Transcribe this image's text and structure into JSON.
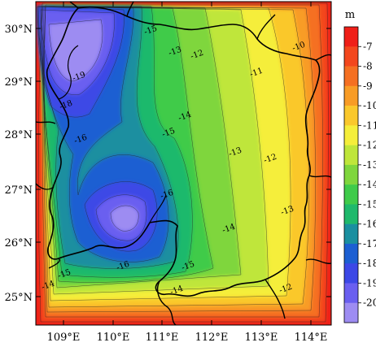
{
  "figure": {
    "type": "contour-map",
    "latitude_labels": [
      "30°N",
      "29°N",
      "28°N",
      "27°N",
      "26°N",
      "25°N"
    ],
    "longitude_labels": [
      "109°E",
      "110°E",
      "111°E",
      "112°E",
      "113°E",
      "114°E"
    ],
    "colorbar": {
      "unit": "m",
      "ticks": [
        "-7",
        "-8",
        "-9",
        "-10",
        "-11",
        "-12",
        "-13",
        "-14",
        "-15",
        "-16",
        "-17",
        "-18",
        "-19",
        "-20"
      ],
      "colors": [
        "#ef1f18",
        "#f3471d",
        "#f57022",
        "#f89c26",
        "#fac82c",
        "#f5ee3a",
        "#bfe63a",
        "#7fd63d",
        "#3fcb4a",
        "#1fb96c",
        "#1a8fa0",
        "#1c5fd2",
        "#3c48e6",
        "#6a5ff0",
        "#9d8cf2"
      ]
    },
    "contour_labels": [
      {
        "text": "-15"
      },
      {
        "text": "-13"
      },
      {
        "text": "-12"
      },
      {
        "text": "-10"
      },
      {
        "text": "-11"
      },
      {
        "text": "-19"
      },
      {
        "text": "-18"
      },
      {
        "text": "-16"
      },
      {
        "text": "-14"
      },
      {
        "text": "-15"
      },
      {
        "text": "-13"
      },
      {
        "text": "-12"
      },
      {
        "text": "-16"
      },
      {
        "text": "-13"
      },
      {
        "text": "-14"
      },
      {
        "text": "-16"
      },
      {
        "text": "-15"
      },
      {
        "text": "-15"
      },
      {
        "text": "-14"
      },
      {
        "text": "-14"
      },
      {
        "text": "-12"
      }
    ]
  }
}
